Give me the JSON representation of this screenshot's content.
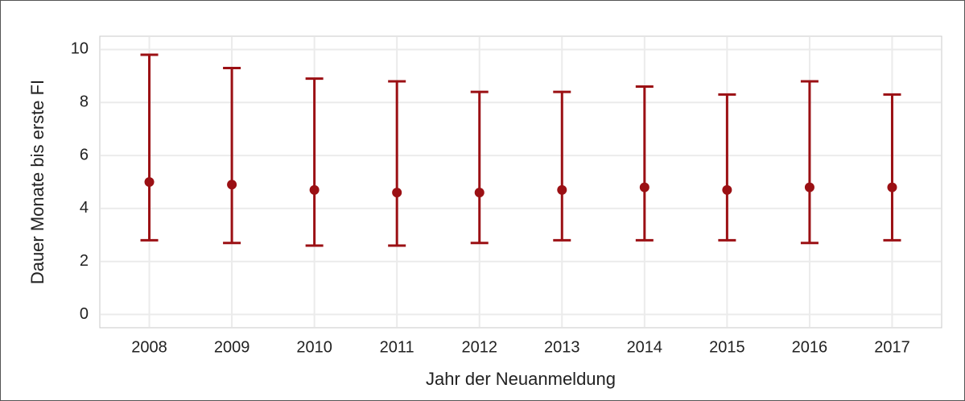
{
  "chart_data": {
    "type": "errorbar",
    "x_label": "Jahr der Neuanmeldung",
    "y_label": "Dauer Monate bis erste FI",
    "categories": [
      "2008",
      "2009",
      "2010",
      "2011",
      "2012",
      "2013",
      "2014",
      "2015",
      "2016",
      "2017"
    ],
    "values": [
      5.0,
      4.9,
      4.7,
      4.6,
      4.6,
      4.7,
      4.8,
      4.7,
      4.8,
      4.8
    ],
    "lower": [
      2.8,
      2.7,
      2.6,
      2.6,
      2.7,
      2.8,
      2.8,
      2.8,
      2.7,
      2.8
    ],
    "upper": [
      9.8,
      9.3,
      8.9,
      8.8,
      8.4,
      8.4,
      8.6,
      8.3,
      8.8,
      8.3
    ],
    "color": "#9b1014",
    "ylim": [
      -0.5,
      10.5
    ],
    "yticks": [
      0,
      2,
      4,
      6,
      8,
      10
    ],
    "grid": true
  }
}
